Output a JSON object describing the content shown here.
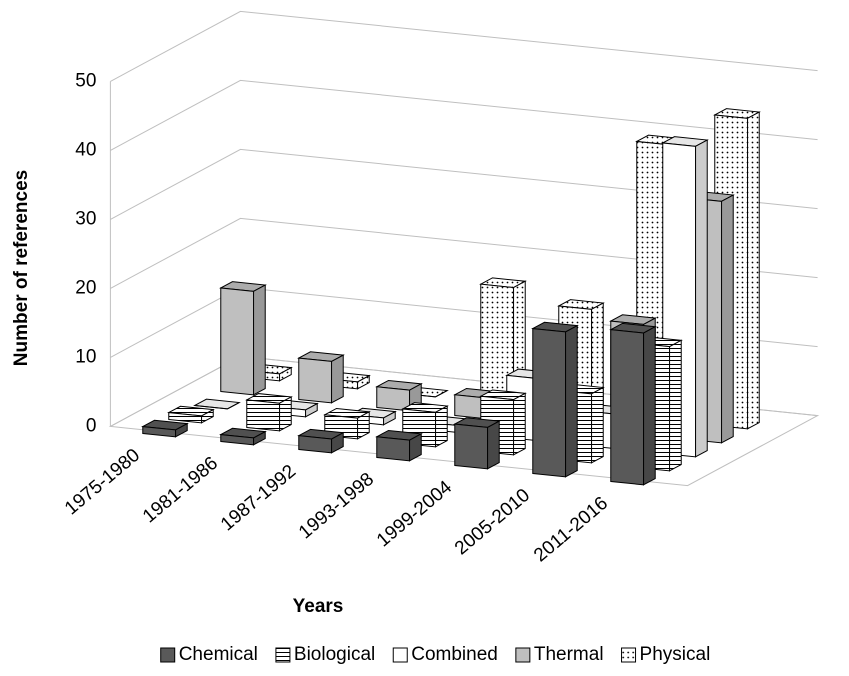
{
  "chart_data": {
    "type": "bar3d",
    "y_label": "Number of references",
    "x_label": "Years",
    "categories": [
      "1975-1980",
      "1981-1986",
      "1987-1992",
      "1993-1998",
      "1999-2004",
      "2005-2010",
      "2011-2016"
    ],
    "series": [
      {
        "name": "Chemical",
        "color": "#595959",
        "values": [
          1,
          1,
          2,
          3,
          6,
          21,
          22
        ]
      },
      {
        "name": "Biological",
        "color": "#ffffff",
        "pattern": "hlines",
        "values": [
          1,
          4,
          3,
          5,
          8,
          10,
          18
        ]
      },
      {
        "name": "Combined",
        "color": "#ffffff",
        "values": [
          0,
          1,
          1,
          1,
          9,
          5,
          45
        ]
      },
      {
        "name": "Thermal",
        "color": "#bfbfbf",
        "values": [
          15,
          6,
          3,
          3,
          4,
          16,
          35
        ]
      },
      {
        "name": "Physical",
        "color": "#ffffff",
        "pattern": "dots",
        "values": [
          1,
          1,
          0,
          17,
          15,
          40,
          45
        ]
      }
    ],
    "ylim": [
      0,
      50
    ],
    "yticks": [
      0,
      10,
      20,
      30,
      40,
      50
    ],
    "grid": true,
    "legend": "bottom"
  }
}
